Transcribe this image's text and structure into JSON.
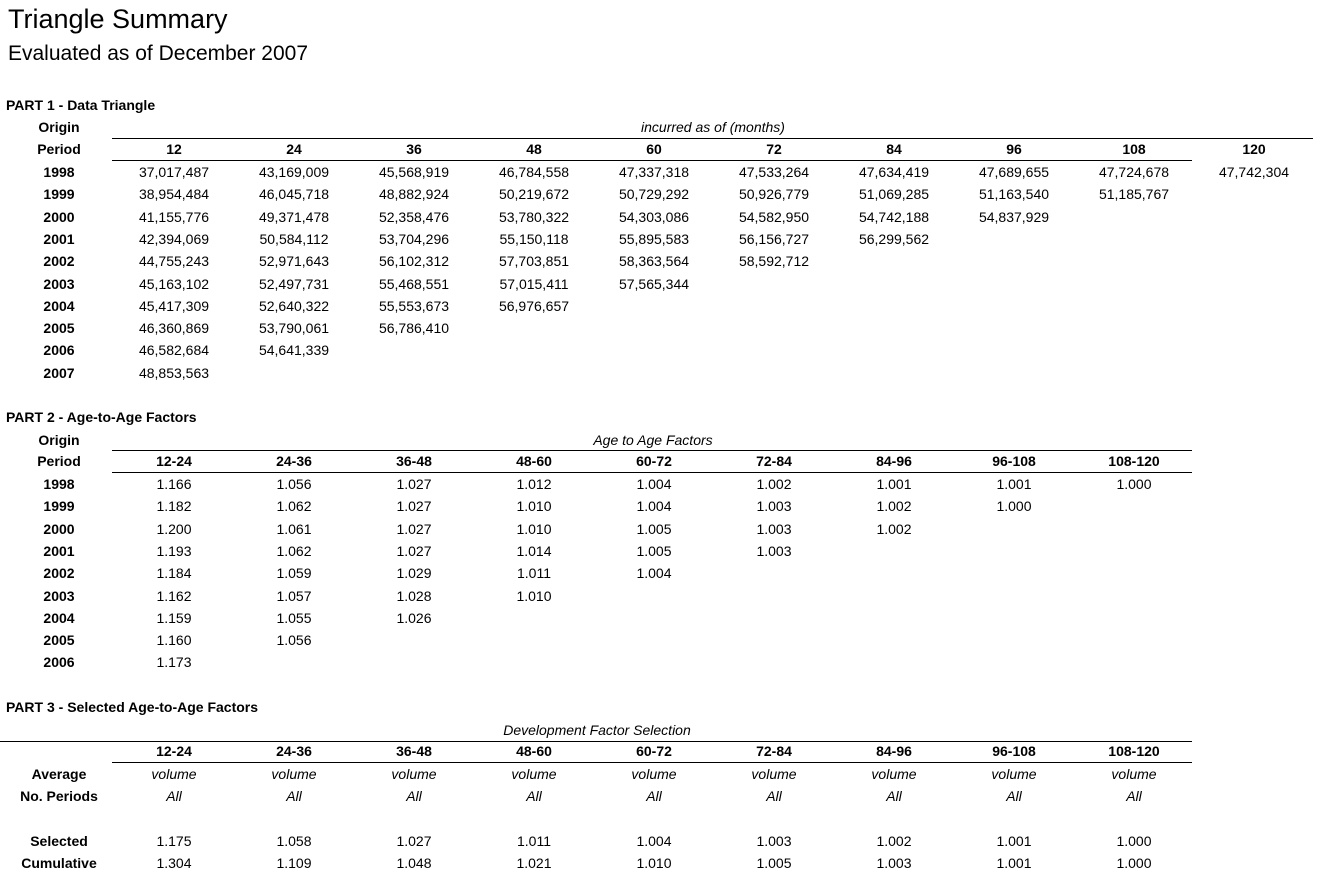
{
  "title": "Triangle Summary",
  "subtitle": "Evaluated as of December 2007",
  "part1": {
    "heading": "PART 1 - Data Triangle",
    "origin_label": "Origin",
    "period_label": "Period",
    "caption": "incurred as of (months)",
    "columns": [
      "12",
      "24",
      "36",
      "48",
      "60",
      "72",
      "84",
      "96",
      "108",
      "120"
    ],
    "rows": [
      {
        "year": "1998",
        "values": [
          "37,017,487",
          "43,169,009",
          "45,568,919",
          "46,784,558",
          "47,337,318",
          "47,533,264",
          "47,634,419",
          "47,689,655",
          "47,724,678",
          "47,742,304"
        ]
      },
      {
        "year": "1999",
        "values": [
          "38,954,484",
          "46,045,718",
          "48,882,924",
          "50,219,672",
          "50,729,292",
          "50,926,779",
          "51,069,285",
          "51,163,540",
          "51,185,767"
        ]
      },
      {
        "year": "2000",
        "values": [
          "41,155,776",
          "49,371,478",
          "52,358,476",
          "53,780,322",
          "54,303,086",
          "54,582,950",
          "54,742,188",
          "54,837,929"
        ]
      },
      {
        "year": "2001",
        "values": [
          "42,394,069",
          "50,584,112",
          "53,704,296",
          "55,150,118",
          "55,895,583",
          "56,156,727",
          "56,299,562"
        ]
      },
      {
        "year": "2002",
        "values": [
          "44,755,243",
          "52,971,643",
          "56,102,312",
          "57,703,851",
          "58,363,564",
          "58,592,712"
        ]
      },
      {
        "year": "2003",
        "values": [
          "45,163,102",
          "52,497,731",
          "55,468,551",
          "57,015,411",
          "57,565,344"
        ]
      },
      {
        "year": "2004",
        "values": [
          "45,417,309",
          "52,640,322",
          "55,553,673",
          "56,976,657"
        ]
      },
      {
        "year": "2005",
        "values": [
          "46,360,869",
          "53,790,061",
          "56,786,410"
        ]
      },
      {
        "year": "2006",
        "values": [
          "46,582,684",
          "54,641,339"
        ]
      },
      {
        "year": "2007",
        "values": [
          "48,853,563"
        ]
      }
    ]
  },
  "part2": {
    "heading": "PART 2 - Age-to-Age Factors",
    "origin_label": "Origin",
    "period_label": "Period",
    "caption": "Age to Age Factors",
    "columns": [
      "12-24",
      "24-36",
      "36-48",
      "48-60",
      "60-72",
      "72-84",
      "84-96",
      "96-108",
      "108-120"
    ],
    "rows": [
      {
        "year": "1998",
        "values": [
          "1.166",
          "1.056",
          "1.027",
          "1.012",
          "1.004",
          "1.002",
          "1.001",
          "1.001",
          "1.000"
        ]
      },
      {
        "year": "1999",
        "values": [
          "1.182",
          "1.062",
          "1.027",
          "1.010",
          "1.004",
          "1.003",
          "1.002",
          "1.000"
        ]
      },
      {
        "year": "2000",
        "values": [
          "1.200",
          "1.061",
          "1.027",
          "1.010",
          "1.005",
          "1.003",
          "1.002"
        ]
      },
      {
        "year": "2001",
        "values": [
          "1.193",
          "1.062",
          "1.027",
          "1.014",
          "1.005",
          "1.003"
        ]
      },
      {
        "year": "2002",
        "values": [
          "1.184",
          "1.059",
          "1.029",
          "1.011",
          "1.004"
        ]
      },
      {
        "year": "2003",
        "values": [
          "1.162",
          "1.057",
          "1.028",
          "1.010"
        ]
      },
      {
        "year": "2004",
        "values": [
          "1.159",
          "1.055",
          "1.026"
        ]
      },
      {
        "year": "2005",
        "values": [
          "1.160",
          "1.056"
        ]
      },
      {
        "year": "2006",
        "values": [
          "1.173"
        ]
      }
    ]
  },
  "part3": {
    "heading": "PART 3 - Selected Age-to-Age Factors",
    "caption": "Development Factor Selection",
    "columns": [
      "12-24",
      "24-36",
      "36-48",
      "48-60",
      "60-72",
      "72-84",
      "84-96",
      "96-108",
      "108-120"
    ],
    "rows": [
      {
        "label": "Average",
        "italic": true,
        "values": [
          "volume",
          "volume",
          "volume",
          "volume",
          "volume",
          "volume",
          "volume",
          "volume",
          "volume"
        ]
      },
      {
        "label": "No. Periods",
        "italic": true,
        "values": [
          "All",
          "All",
          "All",
          "All",
          "All",
          "All",
          "All",
          "All",
          "All"
        ]
      },
      {
        "label": "Selected",
        "italic": false,
        "values": [
          "1.175",
          "1.058",
          "1.027",
          "1.011",
          "1.004",
          "1.003",
          "1.002",
          "1.001",
          "1.000"
        ]
      },
      {
        "label": "Cumulative",
        "italic": false,
        "values": [
          "1.304",
          "1.109",
          "1.048",
          "1.021",
          "1.010",
          "1.005",
          "1.003",
          "1.001",
          "1.000"
        ]
      }
    ]
  }
}
